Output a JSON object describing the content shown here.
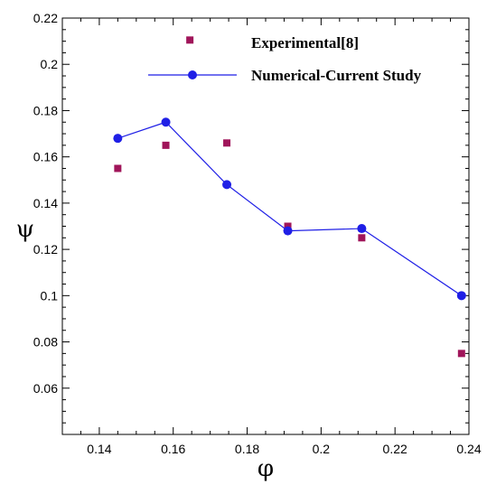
{
  "chart_data": {
    "type": "scatter",
    "xlabel": "φ",
    "ylabel": "ψ",
    "xlim": [
      0.13,
      0.24
    ],
    "ylim": [
      0.04,
      0.22
    ],
    "xticks": [
      0.14,
      0.16,
      0.18,
      0.2,
      0.22,
      0.24
    ],
    "xtick_labels": [
      "0.14",
      "0.16",
      "0.18",
      "0.2",
      "0.22",
      "0.24"
    ],
    "yticks": [
      0.06,
      0.08,
      0.1,
      0.12,
      0.14,
      0.16,
      0.18,
      0.2,
      0.22
    ],
    "ytick_labels": [
      "0.06",
      "0.08",
      "0.1",
      "0.12",
      "0.14",
      "0.16",
      "0.18",
      "0.2",
      "0.22"
    ],
    "grid": false,
    "legend_position": "top-right",
    "series": [
      {
        "name": "Experimental[8]",
        "style": "markers",
        "marker": "square",
        "color": "#a0155a",
        "x": [
          0.145,
          0.158,
          0.1745,
          0.191,
          0.211,
          0.238
        ],
        "y": [
          0.155,
          0.165,
          0.166,
          0.13,
          0.125,
          0.075
        ]
      },
      {
        "name": "Numerical-Current Study",
        "style": "line-markers",
        "marker": "circle",
        "color": "#1f1fe6",
        "x": [
          0.145,
          0.158,
          0.1745,
          0.191,
          0.211,
          0.238
        ],
        "y": [
          0.168,
          0.175,
          0.148,
          0.128,
          0.129,
          0.1
        ]
      }
    ],
    "legend_extra_marker_x": 0.1645,
    "legend_extra_marker_y": 0.2105
  }
}
